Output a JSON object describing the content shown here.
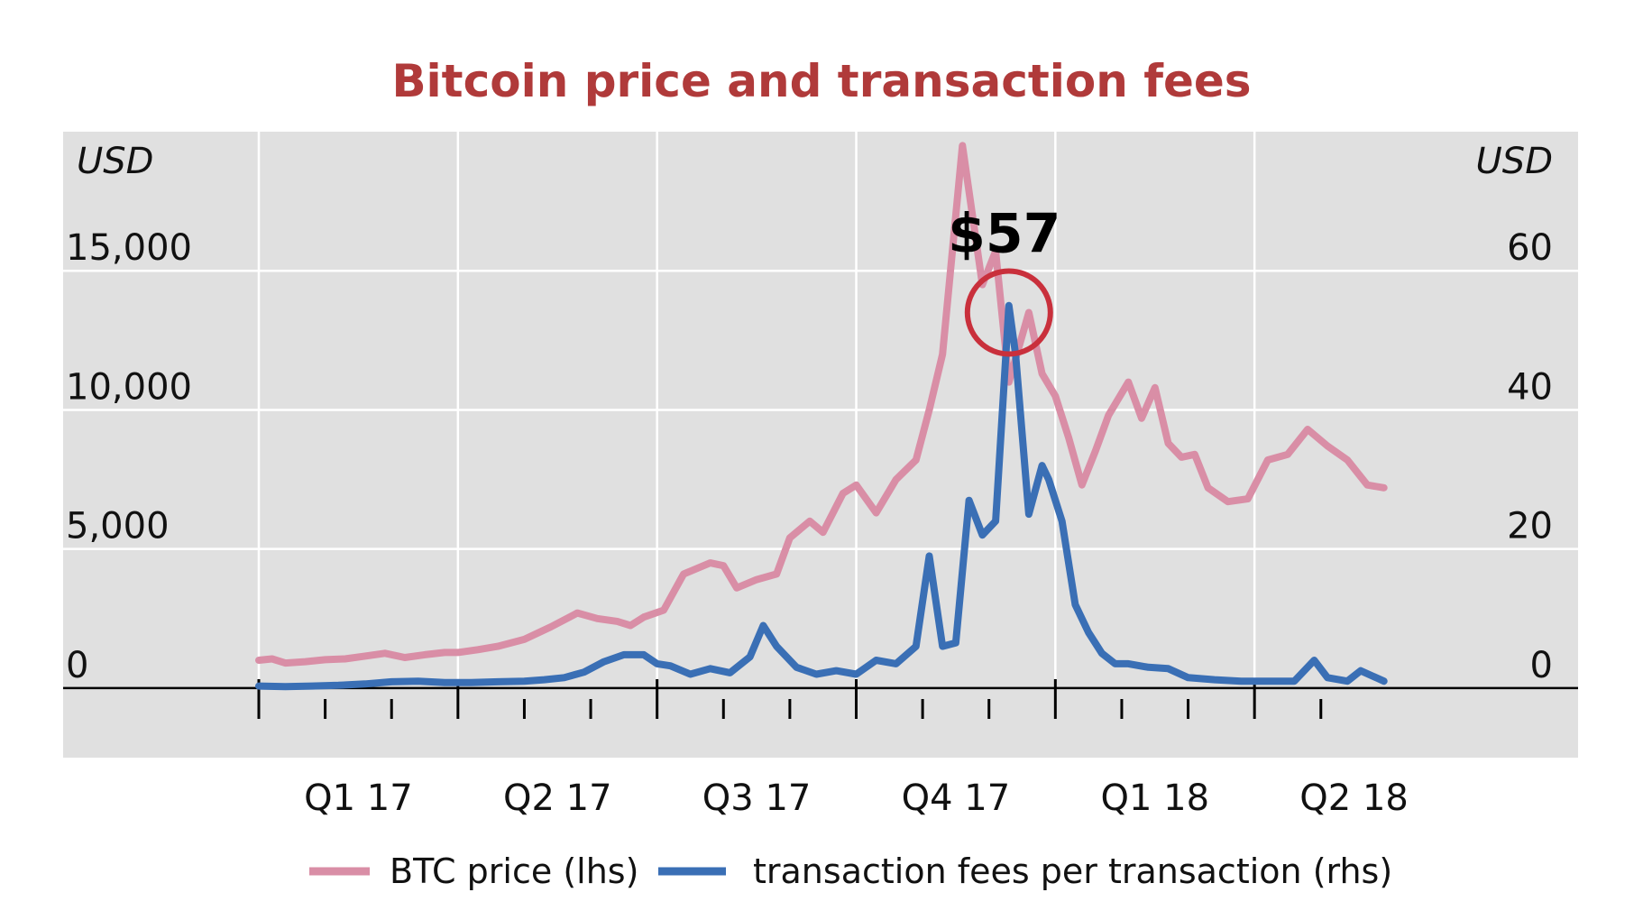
{
  "colors": {
    "title": "#b03a3a",
    "plot_bg": "#e0e0e0",
    "grid": "#ffffff",
    "price_line": "#d98ea6",
    "fee_line": "#3a6fb5",
    "annotation_circle": "#c9303c"
  },
  "chart_data": {
    "type": "line",
    "title": "Bitcoin price and transaction fees",
    "left_unit": "USD",
    "right_unit": "USD",
    "ylim_left": [
      -2500,
      20000
    ],
    "ylim_right": [
      -10,
      80
    ],
    "left_ticks": [
      {
        "value": 0,
        "label": "0"
      },
      {
        "value": 5000,
        "label": "5,000"
      },
      {
        "value": 10000,
        "label": "10,000"
      },
      {
        "value": 15000,
        "label": "15,000"
      }
    ],
    "right_ticks": [
      {
        "value": 0,
        "label": "0"
      },
      {
        "value": 20,
        "label": "20"
      },
      {
        "value": 40,
        "label": "40"
      },
      {
        "value": 60,
        "label": "60"
      }
    ],
    "x_range": [
      0,
      18
    ],
    "x_vertical_gridlines": [
      0,
      3,
      6,
      9,
      12,
      15
    ],
    "x_major_ticks": [
      0,
      3,
      6,
      9,
      12,
      15
    ],
    "x_minor_ticks": [
      1,
      2,
      4,
      5,
      7,
      8,
      10,
      11,
      13,
      14,
      16
    ],
    "x_labels": [
      {
        "pos": 1.5,
        "label": "Q1 17"
      },
      {
        "pos": 4.5,
        "label": "Q2 17"
      },
      {
        "pos": 7.5,
        "label": "Q3 17"
      },
      {
        "pos": 10.5,
        "label": "Q4 17"
      },
      {
        "pos": 13.5,
        "label": "Q1 18"
      },
      {
        "pos": 16.5,
        "label": "Q2 18"
      }
    ],
    "series": [
      {
        "name": "BTC price (lhs)",
        "axis": "left",
        "x": [
          0,
          0.2,
          0.4,
          0.7,
          1.0,
          1.3,
          1.6,
          1.9,
          2.2,
          2.5,
          2.8,
          3.0,
          3.3,
          3.6,
          4.0,
          4.4,
          4.8,
          5.1,
          5.4,
          5.6,
          5.8,
          6.1,
          6.4,
          6.8,
          7.0,
          7.2,
          7.5,
          7.8,
          8.0,
          8.3,
          8.5,
          8.8,
          9.0,
          9.3,
          9.6,
          9.9,
          10.1,
          10.3,
          10.6,
          10.9,
          11.1,
          11.3,
          11.6,
          11.8,
          12.0,
          12.2,
          12.4,
          12.6,
          12.8,
          13.1,
          13.3,
          13.5,
          13.7,
          13.9,
          14.1,
          14.3,
          14.6,
          14.9,
          15.2,
          15.5,
          15.8,
          16.1,
          16.4,
          16.7,
          16.95
        ],
        "values": [
          1000,
          1050,
          900,
          950,
          1020,
          1050,
          1150,
          1250,
          1100,
          1200,
          1280,
          1280,
          1380,
          1500,
          1750,
          2200,
          2700,
          2500,
          2400,
          2250,
          2550,
          2800,
          4100,
          4500,
          4400,
          3600,
          3900,
          4100,
          5400,
          6000,
          5600,
          7000,
          7300,
          6300,
          7500,
          8200,
          10000,
          12000,
          19500,
          14500,
          15700,
          11000,
          13500,
          11300,
          10500,
          9000,
          7300,
          8500,
          9800,
          11000,
          9700,
          10800,
          8800,
          8300,
          8400,
          7200,
          6700,
          6800,
          8200,
          8400,
          9300,
          8700,
          8200,
          7300,
          7200
        ]
      },
      {
        "name": "transaction fees per transaction (rhs)",
        "axis": "right",
        "x": [
          0,
          0.4,
          0.8,
          1.2,
          1.6,
          2.0,
          2.4,
          2.8,
          3.2,
          3.6,
          4.0,
          4.3,
          4.6,
          4.9,
          5.2,
          5.5,
          5.8,
          6.0,
          6.2,
          6.5,
          6.8,
          7.1,
          7.4,
          7.6,
          7.8,
          8.1,
          8.4,
          8.7,
          9.0,
          9.3,
          9.6,
          9.9,
          10.1,
          10.3,
          10.5,
          10.7,
          10.9,
          11.1,
          11.3,
          11.4,
          11.6,
          11.8,
          11.9,
          12.1,
          12.3,
          12.5,
          12.7,
          12.9,
          13.1,
          13.4,
          13.7,
          14.0,
          14.4,
          14.8,
          15.2,
          15.6,
          15.9,
          16.1,
          16.4,
          16.6,
          16.95
        ],
        "values": [
          0.3,
          0.2,
          0.3,
          0.4,
          0.6,
          0.9,
          1.0,
          0.8,
          0.8,
          0.9,
          1.0,
          1.2,
          1.5,
          2.3,
          3.8,
          4.8,
          4.8,
          3.5,
          3.2,
          2.0,
          2.8,
          2.2,
          4.5,
          9.0,
          6.0,
          3.0,
          2.0,
          2.5,
          2.0,
          4.0,
          3.5,
          6.0,
          19.0,
          6.0,
          6.5,
          27.0,
          22.0,
          24.0,
          55.0,
          48.0,
          25.0,
          32.0,
          30.0,
          24.0,
          12.0,
          8.0,
          5.0,
          3.5,
          3.5,
          3.0,
          2.8,
          1.5,
          1.2,
          1.0,
          1.0,
          1.0,
          4.0,
          1.5,
          1.0,
          2.5,
          1.0
        ]
      }
    ],
    "annotation": {
      "label": "$57",
      "x": 11.3,
      "value": 54,
      "axis": "right"
    }
  }
}
